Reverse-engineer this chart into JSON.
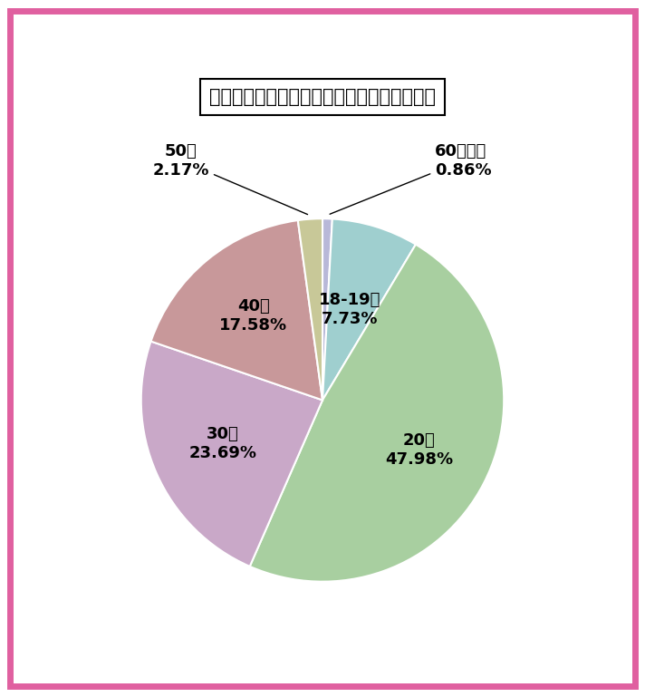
{
  "title": "兵庫県のワクワクメール：女性会員の年齢層",
  "labels_ordered": [
    "60代以上",
    "18-19歳",
    "20代",
    "30代",
    "40代",
    "50代"
  ],
  "values_ordered": [
    0.86,
    7.73,
    47.98,
    23.69,
    17.58,
    2.17
  ],
  "colors_ordered": [
    "#b8b8d8",
    "#9fcfcf",
    "#a8cfa0",
    "#c9a8c8",
    "#c8989a",
    "#c8c898"
  ],
  "background_color": "#ffffff",
  "border_color": "#e060a0",
  "title_fontsize": 15,
  "label_fontsize": 13
}
